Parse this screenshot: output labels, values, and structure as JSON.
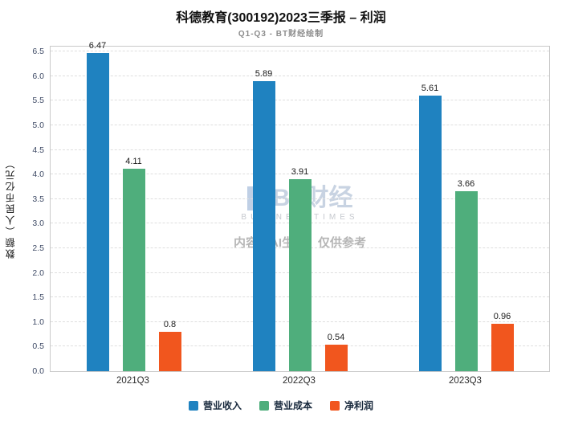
{
  "chart_data": {
    "type": "bar",
    "title": "科德教育(300192)2023三季报 – 利润",
    "subtitle": "Q1-Q3 - BT财经绘制",
    "categories": [
      "2021Q3",
      "2022Q3",
      "2023Q3"
    ],
    "series": [
      {
        "name": "营业收入",
        "color": "#1f82c0",
        "values": [
          6.47,
          5.89,
          5.61
        ]
      },
      {
        "name": "营业成本",
        "color": "#4fae7c",
        "values": [
          4.11,
          3.91,
          3.66
        ]
      },
      {
        "name": "净利润",
        "color": "#f1561e",
        "values": [
          0.8,
          0.54,
          0.96
        ]
      }
    ],
    "ylabel": "数额（人民币亿元）",
    "ylim": [
      0,
      6.5
    ],
    "ytick_step": 0.5,
    "y_scale_max": 6.6,
    "grid": "dashed horizontal",
    "legend_position": "bottom"
  },
  "watermark": {
    "brand": "BT财经",
    "brand_sub": "BUSINESSTIMES",
    "notice": "内容由AI生成，仅供参考"
  }
}
